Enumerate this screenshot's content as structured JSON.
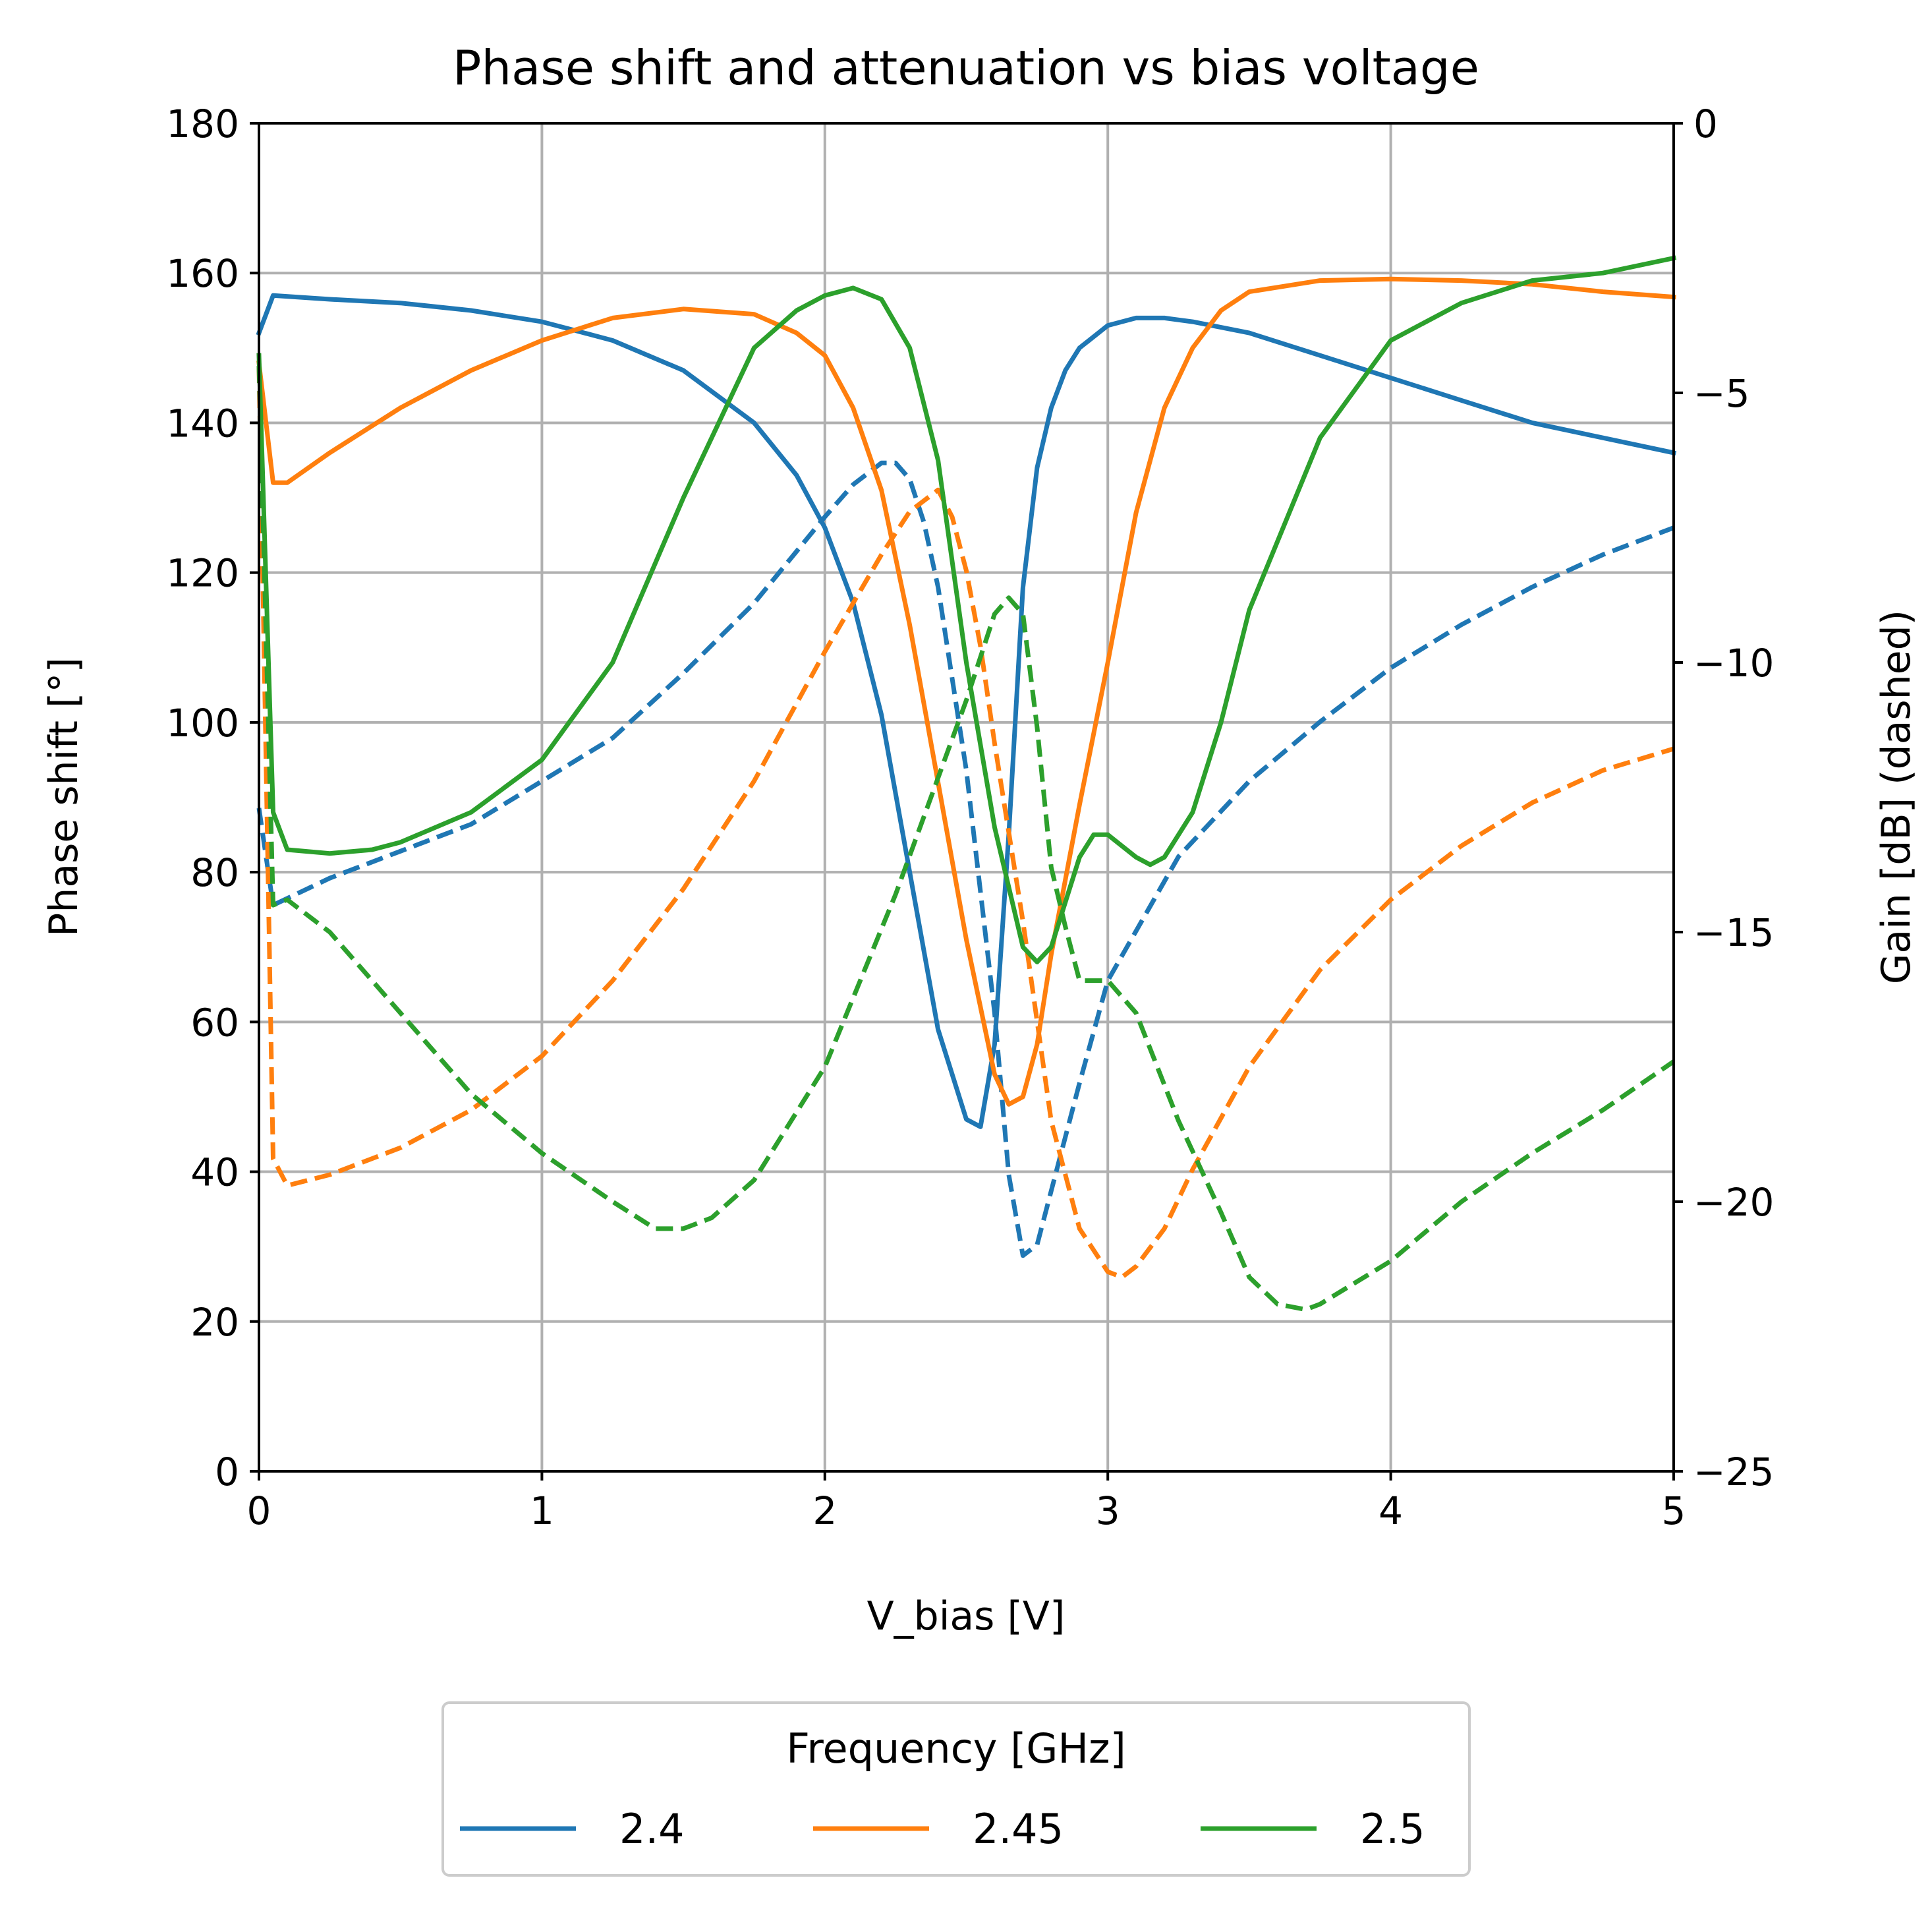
{
  "chart_data": {
    "type": "line",
    "title": "Phase shift and attenuation vs bias voltage",
    "xlabel": "V_bias [V]",
    "ylabel": "Phase shift [°]",
    "y2label": "Gain [dB] (dashed)",
    "xlim": [
      0,
      5
    ],
    "ylim": [
      0,
      180
    ],
    "y2lim": [
      -25,
      0
    ],
    "xticks": [
      0,
      1,
      2,
      3,
      4,
      5
    ],
    "xtick_labels": [
      "0",
      "1",
      "2",
      "3",
      "4",
      "5"
    ],
    "yticks": [
      0,
      20,
      40,
      60,
      80,
      100,
      120,
      140,
      160,
      180
    ],
    "ytick_labels": [
      "0",
      "20",
      "40",
      "60",
      "80",
      "100",
      "120",
      "140",
      "160",
      "180"
    ],
    "y2ticks": [
      0,
      -5,
      -10,
      -15,
      -20,
      -25
    ],
    "y2tick_labels": [
      "0",
      "−5",
      "−10",
      "−15",
      "−20",
      "−25"
    ],
    "grid": true,
    "legend": {
      "title": "Frequency [GHz]",
      "placement": "bottom-center",
      "entries": [
        "2.4",
        "2.45",
        "2.5"
      ]
    },
    "series": [
      {
        "name": "2.4",
        "color": "#1f77b4",
        "phase": {
          "x": [
            0,
            0.05,
            0.25,
            0.5,
            0.75,
            1.0,
            1.1,
            1.25,
            1.5,
            1.75,
            1.9,
            2.0,
            2.1,
            2.2,
            2.3,
            2.4,
            2.5,
            2.55,
            2.6,
            2.65,
            2.7,
            2.75,
            2.8,
            2.85,
            2.9,
            3.0,
            3.1,
            3.2,
            3.3,
            3.5,
            3.75,
            4.0,
            4.25,
            4.5,
            4.75,
            5.0
          ],
          "y": [
            152,
            157,
            156.5,
            156,
            155,
            153.5,
            152.5,
            151,
            147,
            140,
            133,
            126,
            116,
            101,
            80,
            59,
            47,
            46,
            57,
            85,
            118,
            134,
            142,
            147,
            150,
            153,
            154,
            154,
            153.5,
            152,
            149,
            146,
            143,
            140,
            138,
            136
          ]
        },
        "gain": {
          "x": [
            0,
            0.05,
            0.25,
            0.5,
            0.75,
            1.0,
            1.25,
            1.5,
            1.75,
            2.0,
            2.1,
            2.2,
            2.25,
            2.3,
            2.35,
            2.4,
            2.5,
            2.6,
            2.65,
            2.7,
            2.75,
            2.8,
            2.9,
            3.0,
            3.25,
            3.5,
            3.75,
            4.0,
            4.25,
            4.5,
            4.75,
            5.0
          ],
          "y": [
            -12.7,
            -14.5,
            -14,
            -13.5,
            -13,
            -12.2,
            -11.4,
            -10.2,
            -8.9,
            -7.3,
            -6.7,
            -6.3,
            -6.3,
            -6.6,
            -7.4,
            -8.6,
            -12,
            -16.5,
            -19.5,
            -21,
            -20.8,
            -19.8,
            -17.8,
            -15.9,
            -13.6,
            -12.2,
            -11.1,
            -10.1,
            -9.3,
            -8.6,
            -8,
            -7.5
          ]
        }
      },
      {
        "name": "2.45",
        "color": "#ff7f0e",
        "phase": {
          "x": [
            0,
            0.05,
            0.1,
            0.25,
            0.5,
            0.75,
            1.0,
            1.25,
            1.5,
            1.75,
            1.9,
            2.0,
            2.1,
            2.2,
            2.3,
            2.4,
            2.5,
            2.6,
            2.65,
            2.7,
            2.75,
            2.8,
            2.9,
            3.0,
            3.1,
            3.2,
            3.3,
            3.4,
            3.5,
            3.75,
            4.0,
            4.25,
            4.5,
            4.75,
            5.0
          ],
          "y": [
            148,
            132,
            132,
            136,
            142,
            147,
            151,
            154,
            155.2,
            154.5,
            152,
            149,
            142,
            131,
            113,
            92,
            71,
            53,
            49,
            50,
            57,
            69,
            89,
            108,
            128,
            142,
            150,
            155,
            157.5,
            159,
            159.2,
            159,
            158.5,
            157.5,
            156.8
          ]
        },
        "gain": {
          "x": [
            0,
            0.05,
            0.1,
            0.25,
            0.5,
            0.75,
            1.0,
            1.25,
            1.5,
            1.75,
            2.0,
            2.1,
            2.2,
            2.3,
            2.4,
            2.45,
            2.5,
            2.55,
            2.6,
            2.7,
            2.8,
            2.9,
            3.0,
            3.05,
            3.1,
            3.2,
            3.3,
            3.5,
            3.75,
            4.0,
            4.25,
            4.5,
            4.75,
            5.0
          ],
          "y": [
            -4.5,
            -19.2,
            -19.7,
            -19.5,
            -19,
            -18.3,
            -17.3,
            -15.9,
            -14.2,
            -12.2,
            -9.8,
            -8.9,
            -8,
            -7.2,
            -6.8,
            -7.3,
            -8.3,
            -9.7,
            -11.5,
            -14.8,
            -18.5,
            -20.5,
            -21.3,
            -21.4,
            -21.2,
            -20.5,
            -19.4,
            -17.5,
            -15.7,
            -14.4,
            -13.4,
            -12.6,
            -12,
            -11.6
          ]
        }
      },
      {
        "name": "2.5",
        "color": "#2ca02c",
        "phase": {
          "x": [
            0,
            0.05,
            0.1,
            0.25,
            0.4,
            0.5,
            0.75,
            1.0,
            1.25,
            1.5,
            1.75,
            1.9,
            2.0,
            2.1,
            2.2,
            2.3,
            2.4,
            2.5,
            2.6,
            2.7,
            2.75,
            2.8,
            2.85,
            2.9,
            2.95,
            3.0,
            3.1,
            3.15,
            3.2,
            3.3,
            3.4,
            3.5,
            3.75,
            4.0,
            4.25,
            4.5,
            4.75,
            5.0
          ],
          "y": [
            149,
            88,
            83,
            82.5,
            83,
            84,
            88,
            95,
            108,
            130,
            150,
            155,
            157,
            158,
            156.5,
            150,
            135,
            108,
            86,
            70,
            68,
            70,
            76,
            82,
            85,
            85,
            82,
            81,
            82,
            88,
            100,
            115,
            138,
            151,
            156,
            159,
            160,
            162
          ]
        },
        "gain": {
          "x": [
            0,
            0.05,
            0.1,
            0.25,
            0.35,
            0.5,
            0.75,
            1.0,
            1.25,
            1.4,
            1.5,
            1.6,
            1.75,
            2.0,
            2.25,
            2.5,
            2.6,
            2.65,
            2.7,
            2.75,
            2.8,
            2.85,
            2.9,
            2.95,
            3.0,
            3.1,
            3.25,
            3.4,
            3.5,
            3.6,
            3.7,
            3.75,
            4.0,
            4.25,
            4.5,
            4.75,
            5.0
          ],
          "y": [
            -4.5,
            -14.5,
            -14.4,
            -15,
            -15.6,
            -16.5,
            -18,
            -19.1,
            -20,
            -20.5,
            -20.5,
            -20.3,
            -19.6,
            -17.5,
            -14.3,
            -10.7,
            -9.1,
            -8.8,
            -9.1,
            -11.2,
            -13.8,
            -14.9,
            -15.9,
            -15.9,
            -15.9,
            -16.5,
            -18.5,
            -20.2,
            -21.4,
            -21.9,
            -22,
            -21.9,
            -21.1,
            -20,
            -19.1,
            -18.3,
            -17.4
          ]
        }
      }
    ]
  }
}
